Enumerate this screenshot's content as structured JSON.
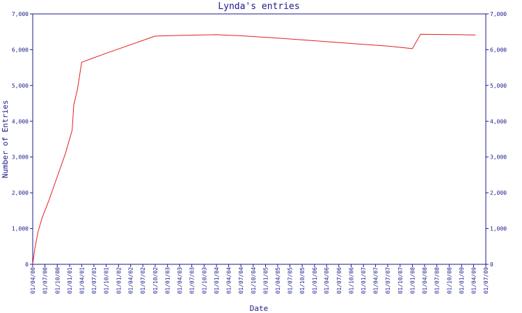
{
  "chart_data": {
    "type": "line",
    "title": "Lynda's entries",
    "xlabel": "Date",
    "ylabel": "Number of Entries",
    "ylim": [
      0,
      7000
    ],
    "yticks": [
      0,
      1000,
      2000,
      3000,
      4000,
      5000,
      6000,
      7000
    ],
    "ytick_labels": [
      "0",
      "1,000",
      "2,000",
      "3,000",
      "4,000",
      "5,000",
      "6,000",
      "7,000"
    ],
    "right_axis_mirrors_left": true,
    "grid": false,
    "xlim": [
      "2000-04-01",
      "2009-07-01"
    ],
    "x_ticks": [
      {
        "date": "2000-04-01",
        "label": "01/04/00"
      },
      {
        "date": "2000-07-01",
        "label": "01/07/00"
      },
      {
        "date": "2000-10-01",
        "label": "01/10/00"
      },
      {
        "date": "2001-01-01",
        "label": "01/01/01"
      },
      {
        "date": "2001-04-01",
        "label": "01/04/01"
      },
      {
        "date": "2001-07-01",
        "label": "01/07/01"
      },
      {
        "date": "2001-10-01",
        "label": "01/10/01"
      },
      {
        "date": "2002-01-01",
        "label": "01/01/02"
      },
      {
        "date": "2002-04-01",
        "label": "01/04/02"
      },
      {
        "date": "2002-07-01",
        "label": "01/07/02"
      },
      {
        "date": "2002-10-01",
        "label": "01/10/02"
      },
      {
        "date": "2003-01-01",
        "label": "01/01/03"
      },
      {
        "date": "2003-04-01",
        "label": "01/04/03"
      },
      {
        "date": "2003-07-01",
        "label": "01/07/03"
      },
      {
        "date": "2003-10-01",
        "label": "01/10/03"
      },
      {
        "date": "2004-01-01",
        "label": "01/01/04"
      },
      {
        "date": "2004-04-01",
        "label": "01/04/04"
      },
      {
        "date": "2004-07-01",
        "label": "01/07/04"
      },
      {
        "date": "2004-10-01",
        "label": "01/10/04"
      },
      {
        "date": "2005-01-01",
        "label": "01/01/05"
      },
      {
        "date": "2005-04-01",
        "label": "01/04/05"
      },
      {
        "date": "2005-07-01",
        "label": "01/07/05"
      },
      {
        "date": "2005-10-01",
        "label": "01/10/05"
      },
      {
        "date": "2006-01-01",
        "label": "01/01/06"
      },
      {
        "date": "2006-04-01",
        "label": "01/04/06"
      },
      {
        "date": "2006-07-01",
        "label": "01/07/06"
      },
      {
        "date": "2006-10-01",
        "label": "01/10/06"
      },
      {
        "date": "2007-01-01",
        "label": "01/01/07"
      },
      {
        "date": "2007-04-01",
        "label": "01/04/07"
      },
      {
        "date": "2007-07-01",
        "label": "01/07/07"
      },
      {
        "date": "2007-10-01",
        "label": "01/10/07"
      },
      {
        "date": "2008-01-01",
        "label": "01/01/08"
      },
      {
        "date": "2008-04-01",
        "label": "01/04/08"
      },
      {
        "date": "2008-07-01",
        "label": "01/07/08"
      },
      {
        "date": "2008-10-01",
        "label": "01/10/08"
      },
      {
        "date": "2009-01-01",
        "label": "01/01/09"
      },
      {
        "date": "2009-04-01",
        "label": "01/04/09"
      },
      {
        "date": "2009-07-01",
        "label": "01/07/09"
      }
    ],
    "series": [
      {
        "color": "#e0201e",
        "points": [
          {
            "x": "2000-04-01",
            "y": 0
          },
          {
            "x": "2000-04-15",
            "y": 400
          },
          {
            "x": "2000-05-10",
            "y": 900
          },
          {
            "x": "2000-06-10",
            "y": 1300
          },
          {
            "x": "2000-08-01",
            "y": 1800
          },
          {
            "x": "2000-10-01",
            "y": 2450
          },
          {
            "x": "2000-12-01",
            "y": 3100
          },
          {
            "x": "2001-01-20",
            "y": 3750
          },
          {
            "x": "2001-02-01",
            "y": 4450
          },
          {
            "x": "2001-03-01",
            "y": 4900
          },
          {
            "x": "2001-04-01",
            "y": 5650
          },
          {
            "x": "2001-10-01",
            "y": 5900
          },
          {
            "x": "2002-10-01",
            "y": 6380
          },
          {
            "x": "2003-04-01",
            "y": 6400
          },
          {
            "x": "2004-01-01",
            "y": 6420
          },
          {
            "x": "2004-07-01",
            "y": 6390
          },
          {
            "x": "2005-07-01",
            "y": 6300
          },
          {
            "x": "2006-07-01",
            "y": 6200
          },
          {
            "x": "2007-07-01",
            "y": 6100
          },
          {
            "x": "2008-01-01",
            "y": 6030
          },
          {
            "x": "2008-03-01",
            "y": 6430
          },
          {
            "x": "2009-01-01",
            "y": 6420
          },
          {
            "x": "2009-04-15",
            "y": 6410
          }
        ]
      }
    ],
    "axis_color": "#1a1a8c"
  }
}
